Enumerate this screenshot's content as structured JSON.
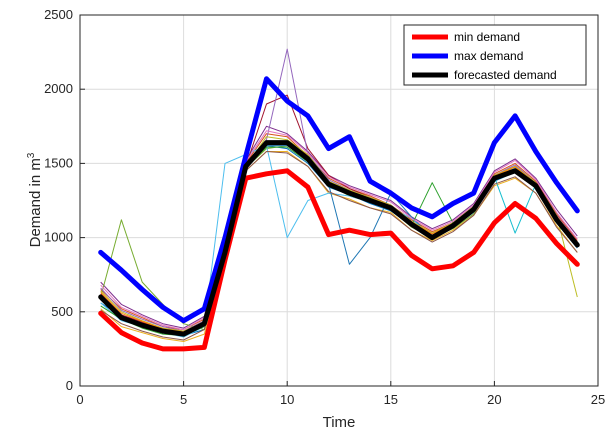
{
  "chart_data": {
    "type": "line",
    "xlabel": "Time",
    "ylabel_prefix": "Demand in m",
    "ylabel_superscript": "3",
    "xlim": [
      0,
      25
    ],
    "ylim": [
      0,
      2500
    ],
    "x_ticks": [
      0,
      5,
      10,
      15,
      20,
      25
    ],
    "y_ticks": [
      0,
      500,
      1000,
      1500,
      2000,
      2500
    ],
    "grid": true,
    "legend_position": "top-right",
    "x": [
      1,
      2,
      3,
      4,
      5,
      6,
      7,
      8,
      9,
      10,
      11,
      12,
      13,
      14,
      15,
      16,
      17,
      18,
      19,
      20,
      21,
      22,
      23,
      24
    ],
    "series": [
      {
        "name": "min demand",
        "color": "#ff0000",
        "width": 5,
        "values": [
          490,
          360,
          290,
          250,
          250,
          260,
          850,
          1400,
          1430,
          1450,
          1340,
          1020,
          1050,
          1020,
          1030,
          880,
          790,
          810,
          900,
          1100,
          1230,
          1130,
          960,
          820
        ]
      },
      {
        "name": "max demand",
        "color": "#0000ff",
        "width": 5,
        "values": [
          900,
          780,
          650,
          530,
          440,
          520,
          1000,
          1550,
          2070,
          1920,
          1820,
          1600,
          1680,
          1380,
          1300,
          1200,
          1140,
          1230,
          1300,
          1640,
          1820,
          1580,
          1370,
          1180
        ]
      },
      {
        "name": "forecasted demand",
        "color": "#000000",
        "width": 5,
        "values": [
          600,
          460,
          410,
          370,
          350,
          420,
          900,
          1480,
          1640,
          1640,
          1530,
          1360,
          1300,
          1250,
          1200,
          1090,
          1000,
          1080,
          1190,
          1400,
          1450,
          1350,
          1120,
          950
        ]
      }
    ],
    "background_series": {
      "colors": [
        "#0072bd",
        "#d95319",
        "#edb120",
        "#7e2f8e",
        "#77ac30",
        "#4dbeee",
        "#a2142f",
        "#1f77b4",
        "#2ca02c",
        "#9467bd",
        "#17becf",
        "#bcbd22",
        "#8c564b",
        "#e377c2",
        "#7f7f7f",
        "#ff7f0e"
      ],
      "values": [
        [
          560,
          470,
          400,
          360,
          340,
          380,
          900,
          1480,
          1620,
          1600,
          1500,
          1340,
          1290,
          1230,
          1180,
          1080,
          1000,
          1070,
          1170,
          1380,
          1440,
          1340,
          1100,
          930
        ],
        [
          650,
          520,
          460,
          400,
          380,
          450,
          950,
          1500,
          1700,
          1680,
          1550,
          1400,
          1330,
          1280,
          1220,
          1120,
          1040,
          1100,
          1210,
          1430,
          1500,
          1380,
          1160,
          980
        ],
        [
          520,
          400,
          360,
          320,
          300,
          350,
          870,
          1450,
          1580,
          1580,
          1480,
          1300,
          1260,
          1200,
          1170,
          1050,
          980,
          1050,
          1150,
          1350,
          1400,
          1300,
          1080,
          900
        ],
        [
          700,
          550,
          480,
          420,
          390,
          470,
          980,
          1520,
          1750,
          1700,
          1580,
          1420,
          1350,
          1300,
          1250,
          1140,
          1060,
          1120,
          1230,
          1450,
          1530,
          1400,
          1190,
          1010
        ],
        [
          600,
          1120,
          700,
          550,
          420,
          380,
          880,
          1470,
          1600,
          1620,
          1520,
          1360,
          1280,
          1240,
          1190,
          1070,
          1000,
          1060,
          1160,
          1390,
          1460,
          1340,
          1120,
          950
        ],
        [
          560,
          440,
          400,
          360,
          330,
          400,
          1500,
          1560,
          1620,
          1000,
          1250,
          1300,
          1280,
          1240,
          1200,
          1130,
          1000,
          1080,
          1200,
          1400,
          1470,
          1350,
          1130,
          960
        ],
        [
          620,
          480,
          430,
          380,
          360,
          420,
          900,
          1480,
          1900,
          1960,
          1600,
          1420,
          1330,
          1270,
          1210,
          1100,
          1010,
          1090,
          1200,
          1420,
          1480,
          1360,
          1140,
          960
        ],
        [
          580,
          460,
          410,
          370,
          350,
          410,
          890,
          1460,
          1620,
          1620,
          1520,
          1360,
          820,
          1000,
          1300,
          1140,
          1000,
          1080,
          1190,
          1400,
          1450,
          1350,
          1120,
          950
        ],
        [
          540,
          450,
          390,
          350,
          340,
          400,
          880,
          1470,
          1610,
          1610,
          1510,
          1350,
          1290,
          1240,
          1190,
          1080,
          1370,
          1100,
          1180,
          1390,
          1440,
          1340,
          1110,
          940
        ],
        [
          660,
          510,
          450,
          400,
          370,
          440,
          930,
          1490,
          1660,
          2270,
          1560,
          1390,
          1320,
          1270,
          1220,
          1110,
          1030,
          1100,
          1210,
          1420,
          1490,
          1370,
          1150,
          970
        ],
        [
          610,
          470,
          420,
          380,
          360,
          430,
          910,
          1490,
          1640,
          1640,
          1540,
          1370,
          1310,
          1260,
          1210,
          1100,
          1010,
          1090,
          1200,
          1410,
          1030,
          1360,
          1130,
          950
        ],
        [
          640,
          500,
          440,
          390,
          370,
          430,
          920,
          1480,
          1680,
          1660,
          1560,
          1380,
          1320,
          1270,
          1220,
          1110,
          1030,
          1100,
          1210,
          1420,
          1480,
          1370,
          1150,
          600
        ],
        [
          510,
          420,
          370,
          330,
          310,
          380,
          860,
          1450,
          1580,
          1570,
          1480,
          1310,
          1250,
          1200,
          1160,
          1050,
          970,
          1040,
          1150,
          1360,
          1410,
          1300,
          1070,
          900
        ],
        [
          680,
          530,
          470,
          410,
          380,
          460,
          960,
          1510,
          1720,
          1690,
          1570,
          1410,
          1340,
          1290,
          1240,
          1130,
          1050,
          1110,
          1220,
          1440,
          1520,
          1390,
          1170,
          990
        ],
        [
          590,
          470,
          415,
          375,
          355,
          420,
          905,
          1485,
          1630,
          1630,
          1535,
          1365,
          1305,
          1255,
          1205,
          1095,
          1005,
          1085,
          1195,
          1405,
          1455,
          1355,
          1125,
          955
        ],
        [
          630,
          490,
          435,
          385,
          365,
          435,
          915,
          1495,
          1650,
          1650,
          1545,
          1375,
          1315,
          1265,
          1215,
          1105,
          1025,
          1095,
          1205,
          1415,
          1475,
          1365,
          1145,
          965
        ]
      ]
    }
  }
}
